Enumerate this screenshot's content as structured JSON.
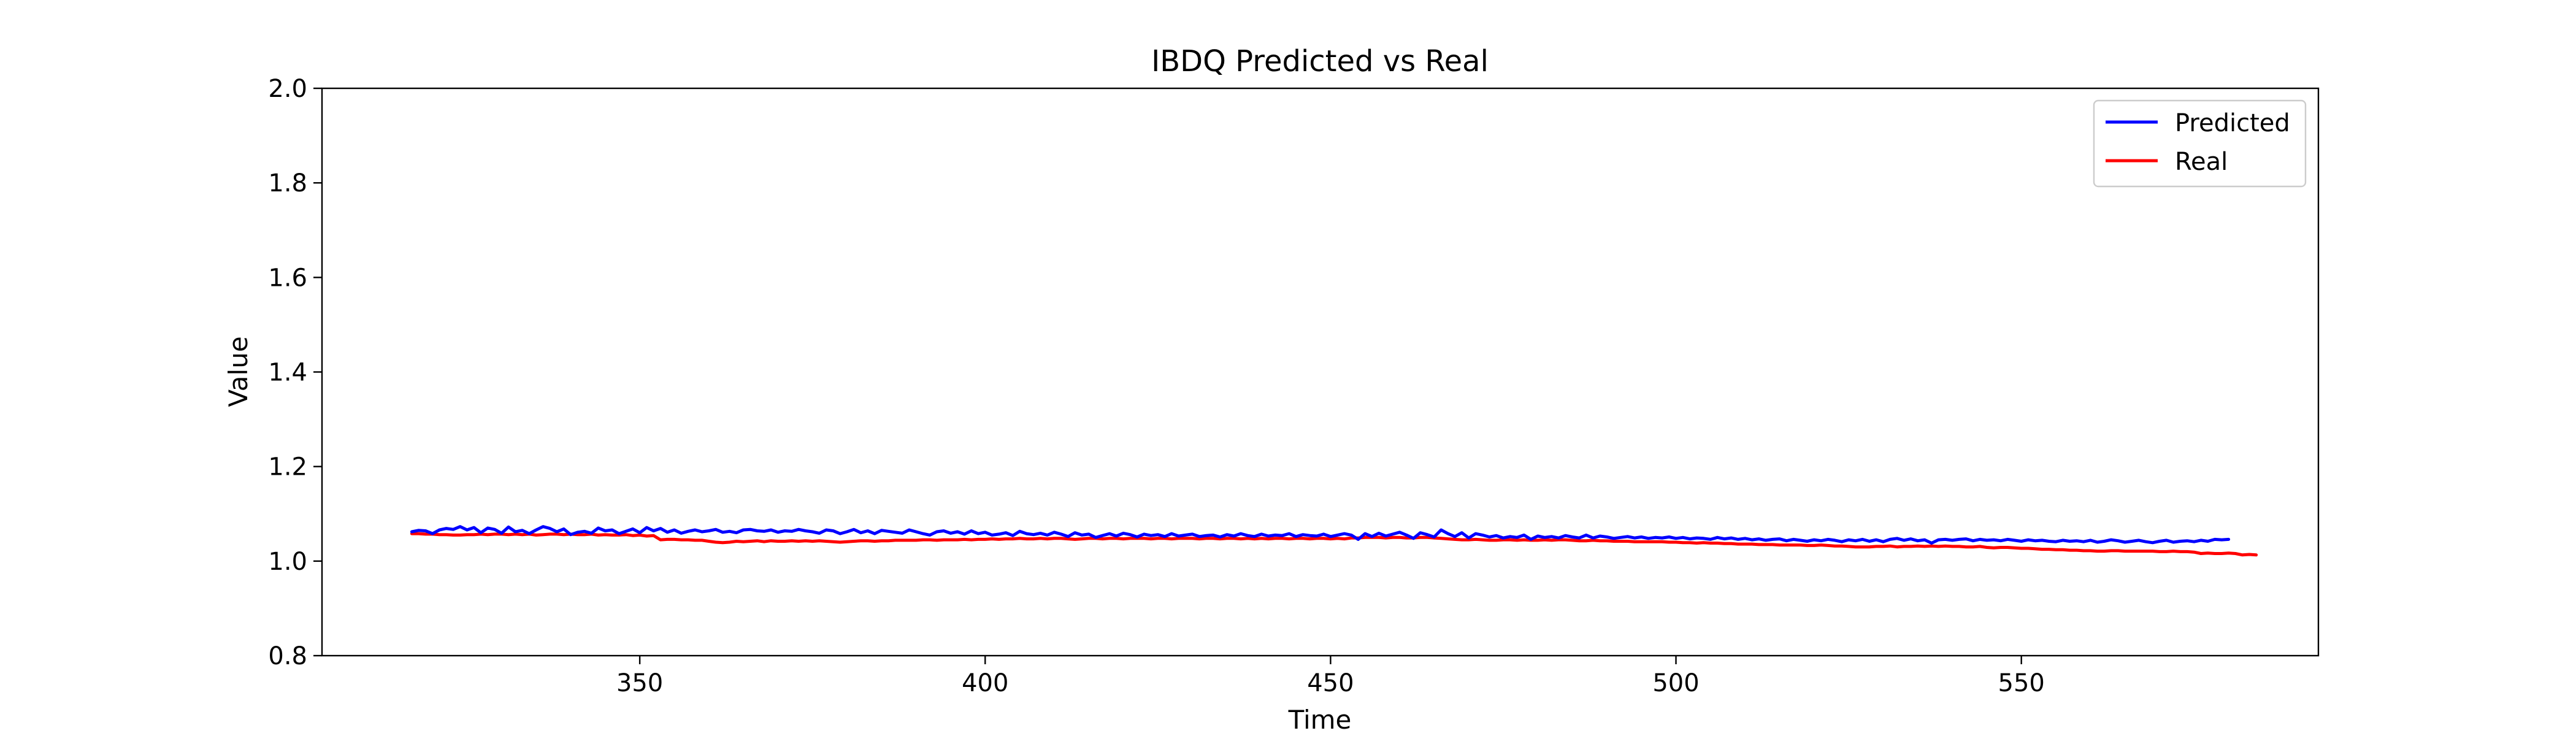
{
  "chart_data": {
    "type": "line",
    "title": "IBDQ Predicted vs Real",
    "xlabel": "Time",
    "ylabel": "Value",
    "xlim": [
      304,
      593
    ],
    "ylim": [
      0.8,
      2.0
    ],
    "xticks": [
      350,
      400,
      450,
      500,
      550
    ],
    "yticks": [
      0.8,
      1.0,
      1.2,
      1.4,
      1.6,
      1.8,
      2.0
    ],
    "ytick_labels": [
      "0.8",
      "1.0",
      "1.2",
      "1.4",
      "1.6",
      "1.8",
      "2.0"
    ],
    "grid": false,
    "legend_position": "top-right",
    "x": {
      "start": 317,
      "end": 580,
      "step": 1
    },
    "series": [
      {
        "name": "Predicted",
        "color": "#0000ff",
        "values": [
          1.062,
          1.065,
          1.064,
          1.058,
          1.066,
          1.069,
          1.067,
          1.073,
          1.066,
          1.071,
          1.06,
          1.07,
          1.067,
          1.059,
          1.072,
          1.062,
          1.065,
          1.058,
          1.066,
          1.073,
          1.069,
          1.062,
          1.068,
          1.056,
          1.061,
          1.063,
          1.059,
          1.07,
          1.064,
          1.066,
          1.058,
          1.063,
          1.068,
          1.06,
          1.071,
          1.064,
          1.069,
          1.061,
          1.066,
          1.059,
          1.063,
          1.066,
          1.062,
          1.064,
          1.067,
          1.061,
          1.063,
          1.06,
          1.066,
          1.067,
          1.064,
          1.063,
          1.066,
          1.061,
          1.064,
          1.063,
          1.067,
          1.064,
          1.062,
          1.059,
          1.066,
          1.064,
          1.058,
          1.062,
          1.067,
          1.06,
          1.064,
          1.058,
          1.065,
          1.063,
          1.061,
          1.059,
          1.066,
          1.062,
          1.058,
          1.055,
          1.062,
          1.064,
          1.059,
          1.062,
          1.057,
          1.064,
          1.058,
          1.061,
          1.055,
          1.057,
          1.06,
          1.054,
          1.063,
          1.058,
          1.056,
          1.059,
          1.055,
          1.061,
          1.057,
          1.052,
          1.06,
          1.055,
          1.057,
          1.05,
          1.054,
          1.058,
          1.053,
          1.059,
          1.056,
          1.051,
          1.057,
          1.054,
          1.056,
          1.052,
          1.058,
          1.053,
          1.055,
          1.057,
          1.052,
          1.054,
          1.055,
          1.051,
          1.056,
          1.053,
          1.058,
          1.054,
          1.052,
          1.057,
          1.053,
          1.055,
          1.054,
          1.058,
          1.052,
          1.056,
          1.054,
          1.053,
          1.057,
          1.052,
          1.055,
          1.058,
          1.055,
          1.046,
          1.058,
          1.052,
          1.059,
          1.053,
          1.057,
          1.061,
          1.055,
          1.048,
          1.06,
          1.056,
          1.051,
          1.066,
          1.058,
          1.052,
          1.06,
          1.049,
          1.058,
          1.055,
          1.051,
          1.054,
          1.049,
          1.052,
          1.05,
          1.055,
          1.046,
          1.053,
          1.05,
          1.052,
          1.049,
          1.054,
          1.051,
          1.049,
          1.055,
          1.049,
          1.053,
          1.051,
          1.048,
          1.05,
          1.052,
          1.049,
          1.051,
          1.048,
          1.05,
          1.049,
          1.051,
          1.048,
          1.05,
          1.047,
          1.049,
          1.048,
          1.046,
          1.05,
          1.047,
          1.049,
          1.046,
          1.048,
          1.045,
          1.047,
          1.044,
          1.046,
          1.047,
          1.043,
          1.046,
          1.044,
          1.042,
          1.045,
          1.043,
          1.046,
          1.044,
          1.041,
          1.045,
          1.043,
          1.046,
          1.042,
          1.045,
          1.041,
          1.046,
          1.048,
          1.044,
          1.047,
          1.043,
          1.045,
          1.038,
          1.045,
          1.046,
          1.044,
          1.046,
          1.047,
          1.043,
          1.046,
          1.044,
          1.045,
          1.043,
          1.046,
          1.044,
          1.042,
          1.045,
          1.043,
          1.044,
          1.042,
          1.041,
          1.044,
          1.042,
          1.043,
          1.041,
          1.044,
          1.04,
          1.042,
          1.045,
          1.043,
          1.04,
          1.042,
          1.044,
          1.041,
          1.039,
          1.042,
          1.044,
          1.04,
          1.042,
          1.043,
          1.041,
          1.044,
          1.042,
          1.046,
          1.045,
          1.046
        ]
      },
      {
        "name": "Real",
        "color": "#ff0000",
        "values": [
          1.058,
          1.058,
          1.057,
          1.057,
          1.056,
          1.056,
          1.055,
          1.055,
          1.056,
          1.056,
          1.057,
          1.056,
          1.057,
          1.057,
          1.056,
          1.057,
          1.056,
          1.057,
          1.055,
          1.056,
          1.057,
          1.057,
          1.056,
          1.057,
          1.056,
          1.056,
          1.057,
          1.055,
          1.056,
          1.055,
          1.055,
          1.056,
          1.054,
          1.055,
          1.053,
          1.054,
          1.045,
          1.046,
          1.046,
          1.045,
          1.045,
          1.044,
          1.044,
          1.042,
          1.04,
          1.039,
          1.04,
          1.042,
          1.041,
          1.042,
          1.043,
          1.041,
          1.043,
          1.042,
          1.042,
          1.043,
          1.042,
          1.043,
          1.042,
          1.043,
          1.042,
          1.041,
          1.04,
          1.041,
          1.042,
          1.043,
          1.043,
          1.042,
          1.043,
          1.043,
          1.044,
          1.044,
          1.044,
          1.044,
          1.045,
          1.045,
          1.044,
          1.045,
          1.045,
          1.045,
          1.046,
          1.045,
          1.046,
          1.046,
          1.047,
          1.046,
          1.047,
          1.047,
          1.048,
          1.047,
          1.047,
          1.048,
          1.047,
          1.048,
          1.048,
          1.047,
          1.046,
          1.047,
          1.048,
          1.048,
          1.047,
          1.048,
          1.048,
          1.047,
          1.048,
          1.048,
          1.048,
          1.047,
          1.048,
          1.048,
          1.047,
          1.048,
          1.048,
          1.048,
          1.047,
          1.048,
          1.048,
          1.047,
          1.048,
          1.048,
          1.047,
          1.048,
          1.047,
          1.048,
          1.047,
          1.048,
          1.048,
          1.047,
          1.048,
          1.048,
          1.047,
          1.048,
          1.048,
          1.047,
          1.048,
          1.047,
          1.049,
          1.049,
          1.05,
          1.05,
          1.05,
          1.049,
          1.05,
          1.05,
          1.049,
          1.049,
          1.05,
          1.05,
          1.049,
          1.048,
          1.047,
          1.046,
          1.045,
          1.045,
          1.046,
          1.045,
          1.044,
          1.044,
          1.045,
          1.045,
          1.044,
          1.045,
          1.044,
          1.044,
          1.045,
          1.044,
          1.045,
          1.045,
          1.044,
          1.043,
          1.043,
          1.044,
          1.043,
          1.043,
          1.042,
          1.042,
          1.042,
          1.041,
          1.041,
          1.041,
          1.041,
          1.041,
          1.04,
          1.04,
          1.039,
          1.039,
          1.038,
          1.039,
          1.038,
          1.038,
          1.037,
          1.037,
          1.036,
          1.036,
          1.036,
          1.035,
          1.035,
          1.035,
          1.034,
          1.034,
          1.034,
          1.034,
          1.033,
          1.033,
          1.034,
          1.033,
          1.032,
          1.032,
          1.031,
          1.03,
          1.03,
          1.03,
          1.031,
          1.031,
          1.032,
          1.03,
          1.031,
          1.031,
          1.032,
          1.031,
          1.032,
          1.031,
          1.032,
          1.031,
          1.031,
          1.03,
          1.03,
          1.031,
          1.029,
          1.028,
          1.029,
          1.029,
          1.028,
          1.027,
          1.027,
          1.026,
          1.025,
          1.025,
          1.024,
          1.024,
          1.023,
          1.023,
          1.022,
          1.022,
          1.021,
          1.021,
          1.022,
          1.022,
          1.021,
          1.021,
          1.021,
          1.021,
          1.021,
          1.02,
          1.02,
          1.021,
          1.02,
          1.02,
          1.019,
          1.016,
          1.017,
          1.016,
          1.016,
          1.017,
          1.016,
          1.013,
          1.014,
          1.013
        ]
      }
    ]
  }
}
